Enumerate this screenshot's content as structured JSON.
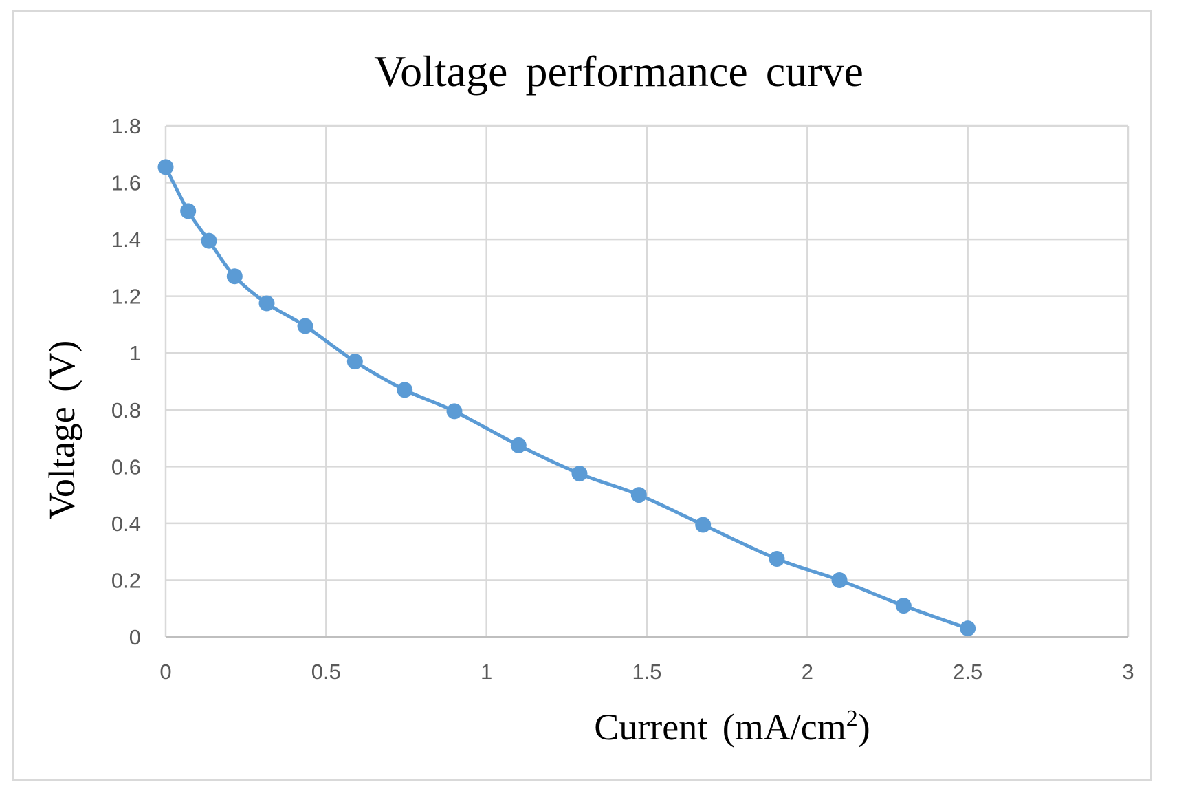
{
  "chart_data": {
    "type": "line",
    "title": "Voltage performance curve",
    "xlabel_main": "Current (mA/cm",
    "xlabel_sup": "2",
    "xlabel_close": ")",
    "ylabel": "Voltage (V)",
    "xlim": [
      0,
      3
    ],
    "ylim": [
      0,
      1.8
    ],
    "xticks": [
      "0",
      "0.5",
      "1",
      "1.5",
      "2",
      "2.5",
      "3"
    ],
    "yticks": [
      "0",
      "0.2",
      "0.4",
      "0.6",
      "0.8",
      "1",
      "1.2",
      "1.4",
      "1.6",
      "1.8"
    ],
    "grid": true,
    "legend": "none",
    "series": [
      {
        "name": "Voltage",
        "color": "#5b9bd5",
        "x": [
          0,
          0.07,
          0.135,
          0.215,
          0.315,
          0.435,
          0.59,
          0.745,
          0.9,
          1.1,
          1.29,
          1.475,
          1.675,
          1.905,
          2.1,
          2.3,
          2.5
        ],
        "y": [
          1.655,
          1.5,
          1.395,
          1.27,
          1.175,
          1.095,
          0.97,
          0.87,
          0.795,
          0.675,
          0.575,
          0.5,
          0.395,
          0.275,
          0.2,
          0.11,
          0.03
        ]
      }
    ]
  }
}
